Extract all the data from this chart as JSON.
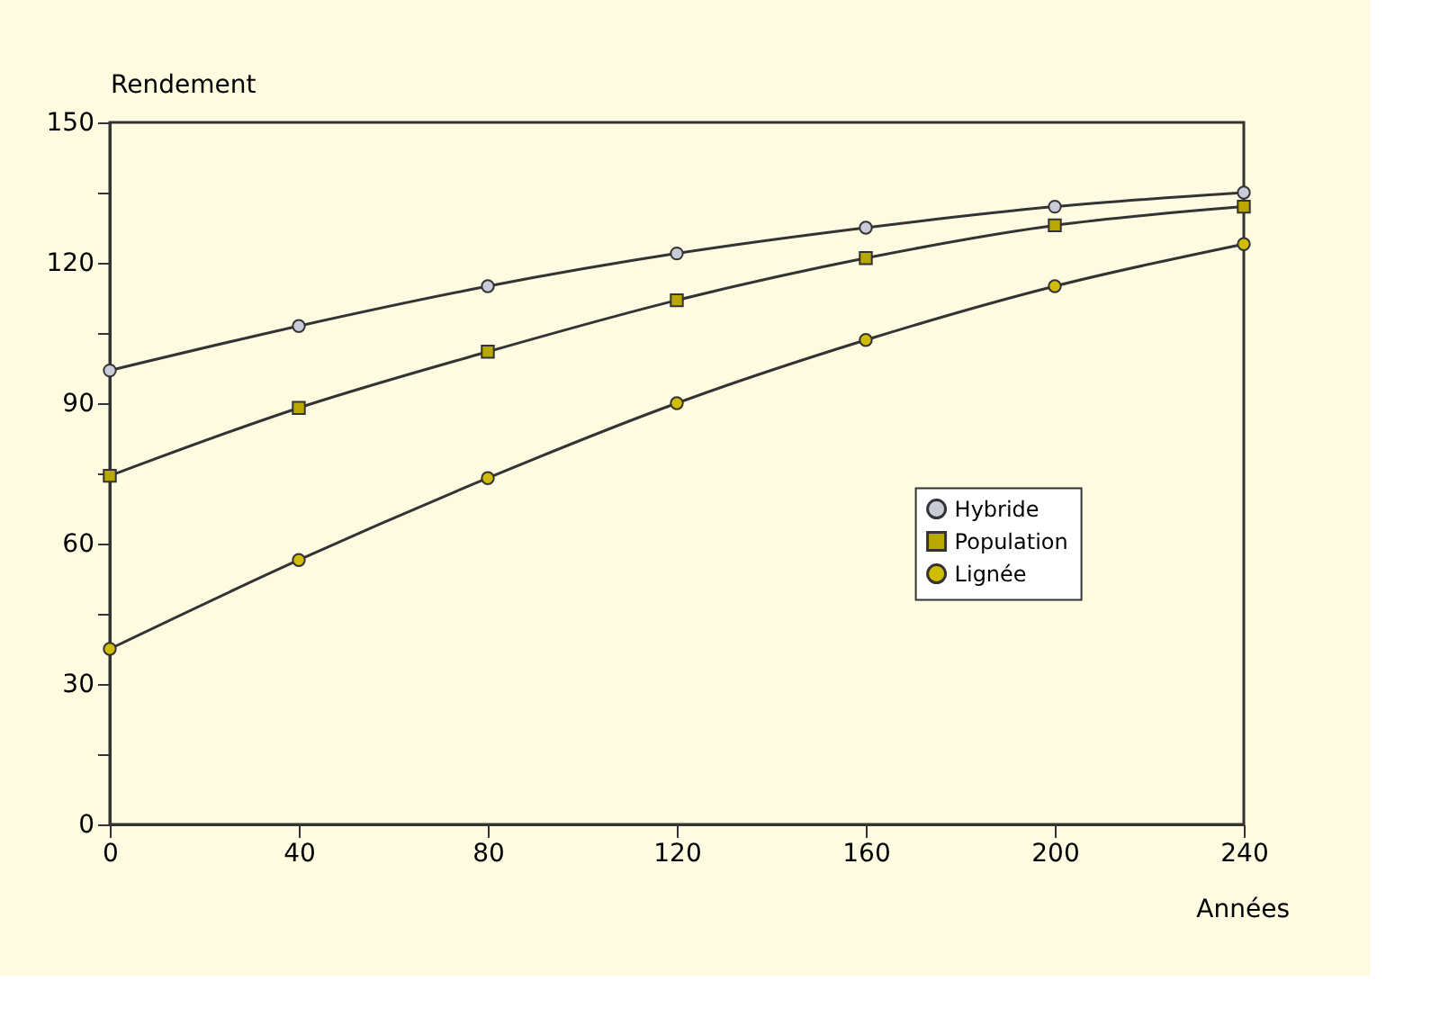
{
  "chart_data": {
    "type": "line",
    "xlabel": "Années",
    "ylabel": "Rendement",
    "x": [
      0,
      40,
      80,
      120,
      160,
      200,
      240
    ],
    "series": [
      {
        "name": "Hybride",
        "color": "#c8ccd8",
        "marker": "circle",
        "values": [
          97,
          106.5,
          115,
          122,
          127.5,
          132,
          135
        ]
      },
      {
        "name": "Population",
        "color": "#b8a800",
        "marker": "square",
        "values": [
          74.5,
          89,
          101,
          112,
          121,
          128,
          132
        ]
      },
      {
        "name": "Lignée",
        "color": "#d0bc00",
        "marker": "circle",
        "values": [
          37.5,
          56.5,
          74,
          90,
          103.5,
          115,
          124
        ]
      }
    ],
    "xlim": [
      0,
      240
    ],
    "xticks": [
      0,
      40,
      80,
      120,
      160,
      200,
      240
    ],
    "ylim": [
      0,
      150
    ],
    "yticks": [
      0,
      {
        "value": 15,
        "label": null
      },
      30,
      {
        "value": 45,
        "label": null
      },
      60,
      {
        "value": 75,
        "label": null
      },
      90,
      {
        "value": 105,
        "label": null
      },
      120,
      {
        "value": 135,
        "label": null
      },
      150
    ],
    "grid": false,
    "legend": "right",
    "line_style": "solid"
  }
}
